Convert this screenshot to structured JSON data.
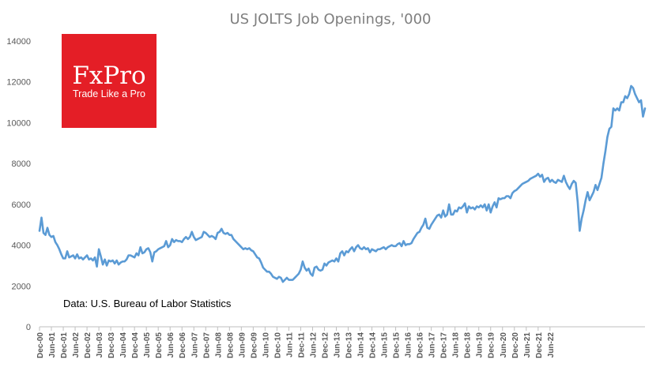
{
  "logo": {
    "name": "FxPro",
    "tagline": "Trade Like a Pro"
  },
  "colors": {
    "series": "#5b9bd5",
    "logo_bg": "#e41e26"
  },
  "chart_data": {
    "type": "line",
    "title": "US JOLTS Job Openings, '000",
    "source_note": "Data: U.S. Bureau of Labor Statistics",
    "xlabel": "",
    "ylabel": "",
    "ylim": [
      0,
      14000
    ],
    "yticks": [
      "0",
      "2000",
      "4000",
      "6000",
      "8000",
      "10000",
      "12000",
      "14000"
    ],
    "grid": false,
    "legend": "none",
    "x_start": "Dec-00",
    "x_end": "Aug-22",
    "xtick_labels": [
      "Dec-00",
      "Jun-01",
      "Dec-01",
      "Jun-02",
      "Dec-02",
      "Jun-03",
      "Dec-03",
      "Jun-04",
      "Dec-04",
      "Jun-05",
      "Dec-05",
      "Jun-06",
      "Dec-06",
      "Jun-07",
      "Dec-07",
      "Jun-08",
      "Dec-08",
      "Jun-09",
      "Dec-09",
      "Jun-10",
      "Dec-10",
      "Jun-11",
      "Dec-11",
      "Jun-12",
      "Dec-12",
      "Jun-13",
      "Dec-13",
      "Jun-14",
      "Dec-14",
      "Jun-15",
      "Dec-15",
      "Jun-16",
      "Dec-16",
      "Jun-17",
      "Dec-17",
      "Jun-18",
      "Dec-18",
      "Jun-19",
      "Dec-19",
      "Jun-20",
      "Dec-20",
      "Jun-21",
      "Dec-21",
      "Jun-22"
    ],
    "series": [
      {
        "name": "",
        "values": [
          4700,
          5350,
          4600,
          4500,
          4850,
          4500,
          4400,
          4450,
          4150,
          4000,
          3800,
          3550,
          3350,
          3350,
          3700,
          3400,
          3450,
          3500,
          3350,
          3550,
          3350,
          3400,
          3300,
          3400,
          3500,
          3300,
          3350,
          3250,
          3400,
          2950,
          3800,
          3450,
          3050,
          3300,
          3000,
          3250,
          3200,
          3250,
          3100,
          3250,
          3050,
          3150,
          3200,
          3200,
          3300,
          3500,
          3500,
          3450,
          3400,
          3600,
          3500,
          3900,
          3600,
          3650,
          3800,
          3850,
          3650,
          3200,
          3650,
          3700,
          3800,
          3850,
          3900,
          3950,
          4200,
          3900,
          4000,
          4300,
          4150,
          4250,
          4200,
          4200,
          4150,
          4300,
          4400,
          4300,
          4400,
          4650,
          4400,
          4250,
          4300,
          4350,
          4400,
          4650,
          4600,
          4500,
          4400,
          4450,
          4400,
          4300,
          4600,
          4650,
          4800,
          4600,
          4550,
          4600,
          4500,
          4500,
          4300,
          4200,
          4100,
          4000,
          3900,
          3800,
          3850,
          3800,
          3850,
          3750,
          3700,
          3550,
          3400,
          3350,
          3150,
          2900,
          2800,
          2700,
          2700,
          2600,
          2450,
          2400,
          2350,
          2450,
          2400,
          2200,
          2300,
          2400,
          2300,
          2300,
          2300,
          2400,
          2500,
          2600,
          2800,
          3200,
          2900,
          2750,
          2850,
          2600,
          2500,
          2900,
          2950,
          2800,
          2750,
          2800,
          3100,
          3000,
          3150,
          3200,
          3250,
          3200,
          3350,
          3200,
          3600,
          3700,
          3500,
          3700,
          3650,
          3800,
          3900,
          3700,
          3900,
          4000,
          3850,
          3800,
          3900,
          3800,
          3850,
          3650,
          3800,
          3750,
          3700,
          3800,
          3800,
          3850,
          3900,
          3800,
          3900,
          3950,
          4000,
          3950,
          3950,
          4050,
          4100,
          3950,
          4200,
          4000,
          4050,
          4050,
          4100,
          4300,
          4450,
          4600,
          4650,
          4850,
          5000,
          5300,
          4850,
          4800,
          5000,
          5150,
          5300,
          5450,
          5500,
          5350,
          5700,
          5400,
          5500,
          6000,
          5500,
          5500,
          5700,
          5650,
          5850,
          5800,
          5900,
          6050,
          5600,
          5900,
          5800,
          5850,
          5750,
          5900,
          5850,
          5950,
          5850,
          6000,
          5700,
          6000,
          5600,
          5900,
          6100,
          5850,
          6300,
          6250,
          6300,
          6300,
          6400,
          6400,
          6300,
          6550,
          6650,
          6700,
          6800,
          6900,
          7000,
          7050,
          7100,
          7150,
          7250,
          7300,
          7350,
          7400,
          7500,
          7350,
          7450,
          7100,
          7250,
          7300,
          7100,
          7200,
          7100,
          7050,
          7200,
          7150,
          7100,
          7400,
          7100,
          6900,
          6750,
          7000,
          7150,
          7050,
          6100,
          4700,
          5300,
          5700,
          6200,
          6600,
          6200,
          6400,
          6600,
          6950,
          6700,
          7000,
          7300,
          8000,
          8600,
          9300,
          9700,
          9800,
          10700,
          10600,
          10700,
          10600,
          11000,
          11000,
          11300,
          11200,
          11400,
          11800,
          11700,
          11400,
          11200,
          11000,
          11100,
          10300,
          10700
        ]
      }
    ]
  }
}
